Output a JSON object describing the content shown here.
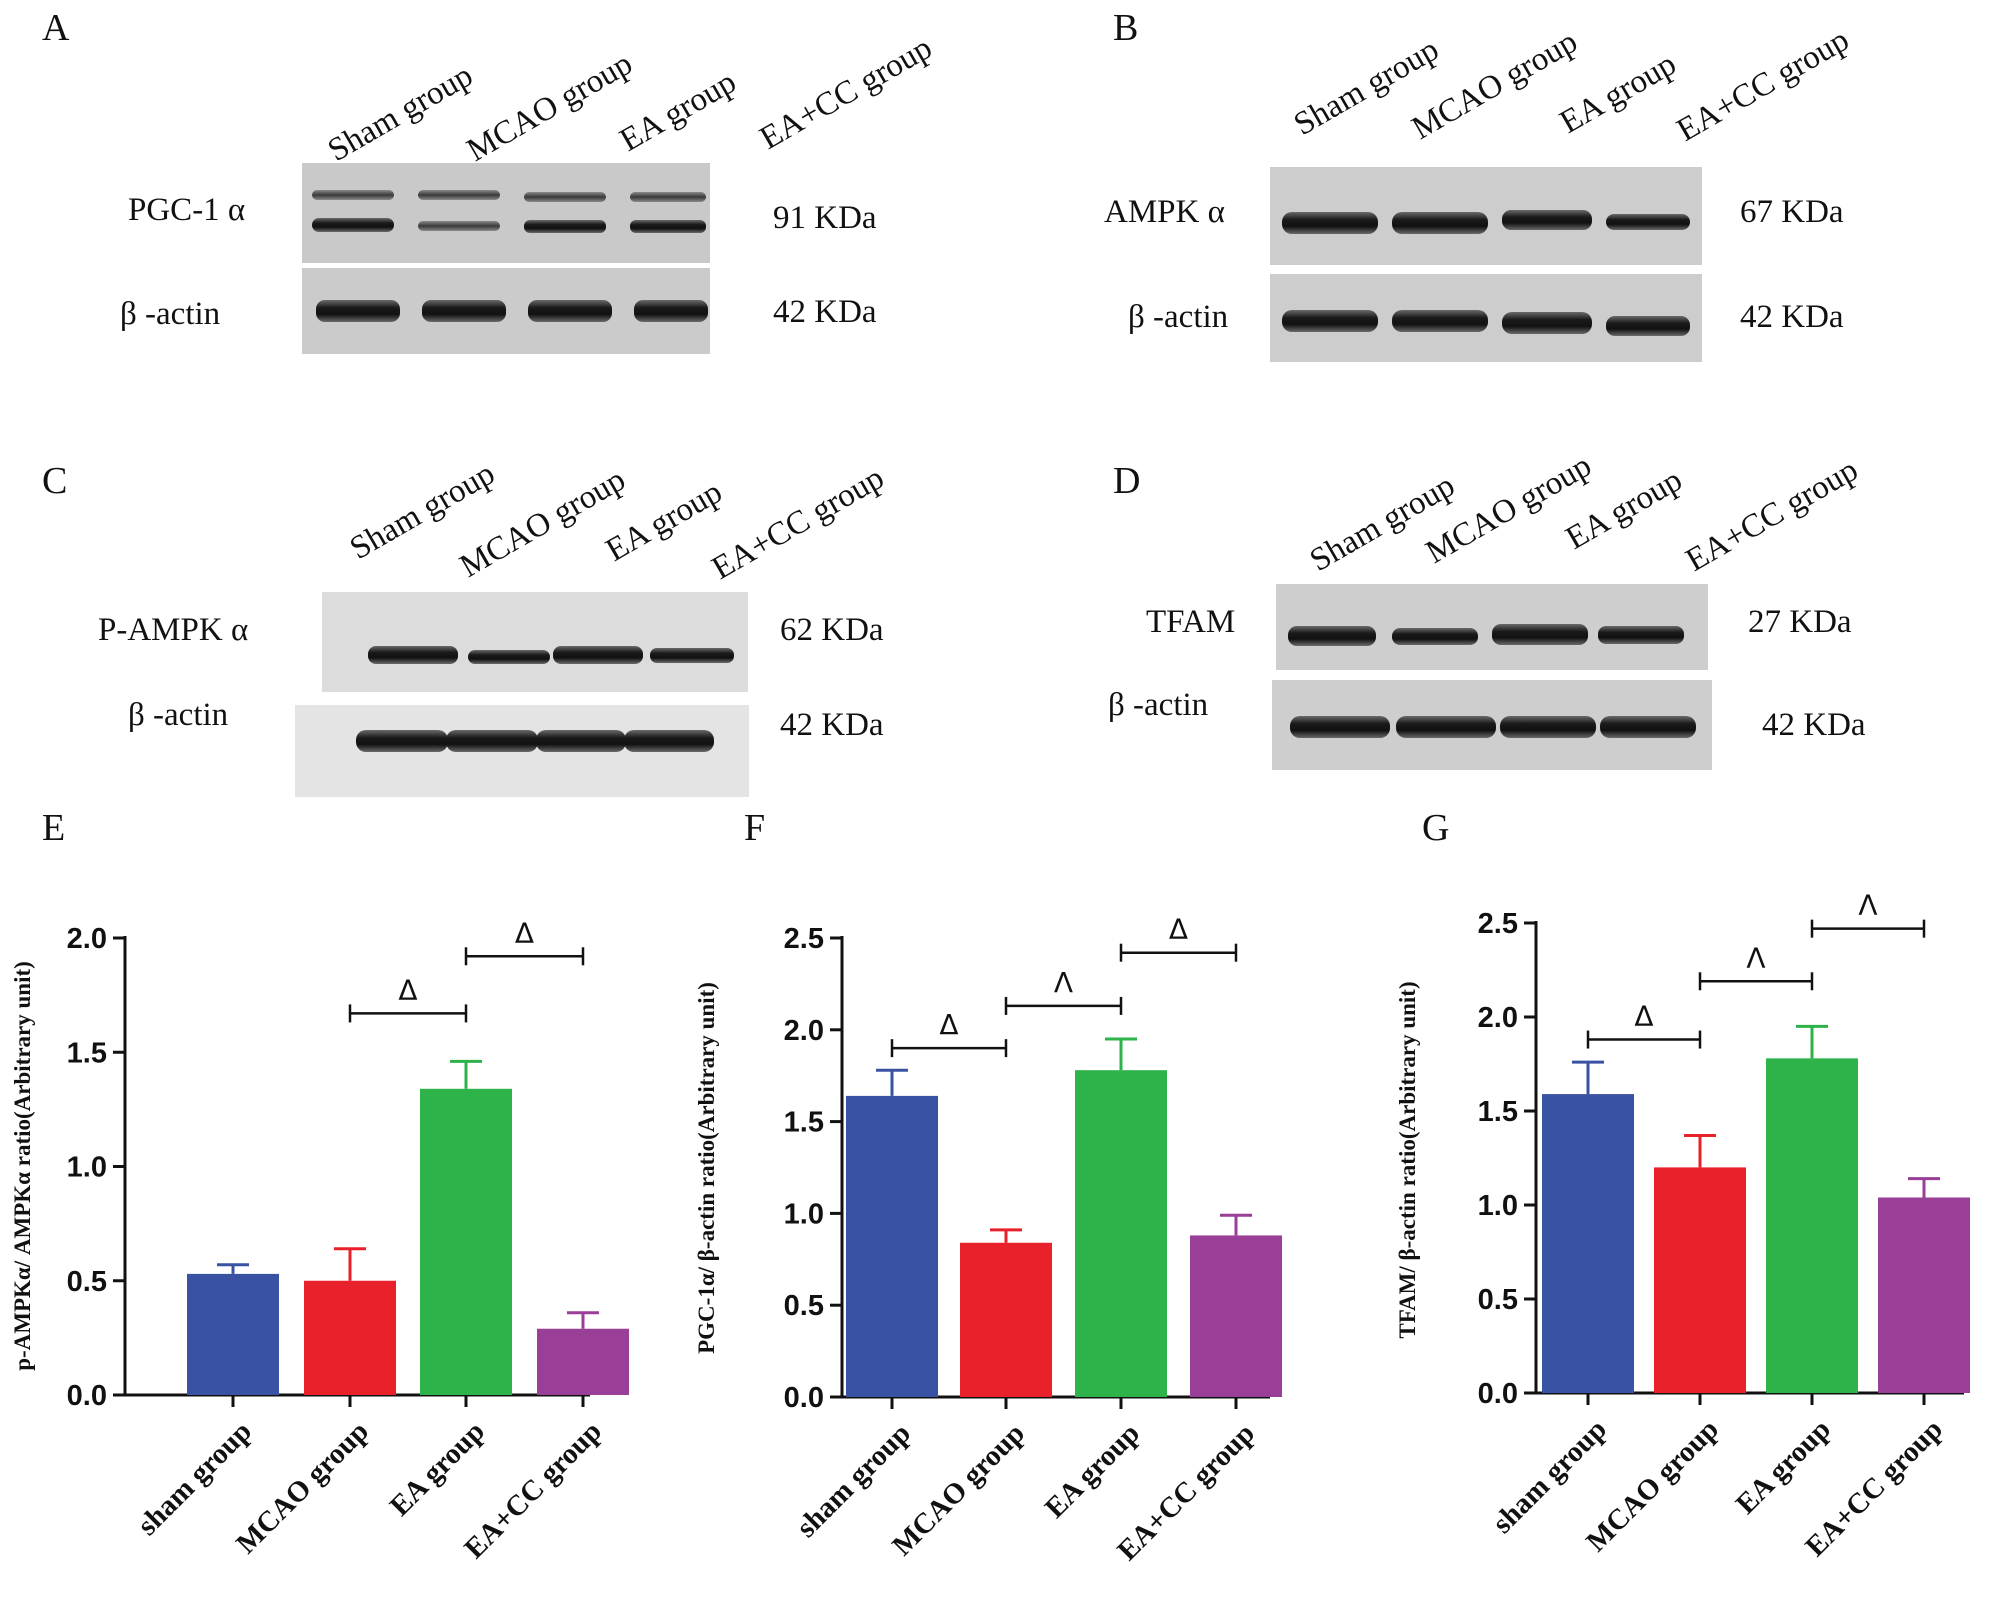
{
  "blots": [
    {
      "panel": "A",
      "groups": [
        "Sham group",
        "MCAO group",
        "EA group",
        "EA+CC group"
      ],
      "rows": [
        {
          "protein": "PGC-1 α",
          "kda": "91 KDa"
        },
        {
          "protein": "β -actin",
          "kda": "42 KDa"
        }
      ]
    },
    {
      "panel": "B",
      "groups": [
        "Sham group",
        "MCAO group",
        "EA group",
        "EA+CC group"
      ],
      "rows": [
        {
          "protein": "AMPK α",
          "kda": "67 KDa"
        },
        {
          "protein": "β -actin",
          "kda": "42 KDa"
        }
      ]
    },
    {
      "panel": "C",
      "groups": [
        "Sham group",
        "MCAO group",
        "EA group",
        "EA+CC group"
      ],
      "rows": [
        {
          "protein": "P-AMPK α",
          "kda": "62 KDa"
        },
        {
          "protein": "β -actin",
          "kda": "42 KDa"
        }
      ]
    },
    {
      "panel": "D",
      "groups": [
        "Sham group",
        "MCAO group",
        "EA group",
        "EA+CC group"
      ],
      "rows": [
        {
          "protein": "TFAM",
          "kda": "27 KDa"
        },
        {
          "protein": "β -actin",
          "kda": "42 KDa"
        }
      ]
    }
  ],
  "colors": {
    "sham": "#3a52a3",
    "mcao": "#e8212b",
    "ea": "#2db34a",
    "eacc": "#9a3f97"
  },
  "chart_data": [
    {
      "panel": "E",
      "type": "bar",
      "categories": [
        "sham group",
        "MCAO group",
        "EA group",
        "EA+CC group"
      ],
      "values": [
        0.53,
        0.5,
        1.34,
        0.29
      ],
      "errors": [
        0.04,
        0.14,
        0.12,
        0.07
      ],
      "ylabel": "p-AMPKα/ AMPKα ratio(Arbitrary unit)",
      "ylim": [
        0,
        2.0
      ],
      "yticks": [
        "0.0",
        "0.5",
        "1.0",
        "1.5",
        "2.0"
      ],
      "significance": [
        {
          "from": 1,
          "to": 2,
          "y": 1.67,
          "label": "Δ"
        },
        {
          "from": 2,
          "to": 3,
          "y": 1.92,
          "label": "Δ"
        }
      ]
    },
    {
      "panel": "F",
      "type": "bar",
      "categories": [
        "sham group",
        "MCAO group",
        "EA group",
        "EA+CC group"
      ],
      "values": [
        1.64,
        0.84,
        1.78,
        0.88
      ],
      "errors": [
        0.14,
        0.07,
        0.17,
        0.11
      ],
      "ylabel": "PGC-1α/ β-actin ratio(Arbitrary unit)",
      "ylim": [
        0,
        2.5
      ],
      "yticks": [
        "0.0",
        "0.5",
        "1.0",
        "1.5",
        "2.0",
        "2.5"
      ],
      "significance": [
        {
          "from": 0,
          "to": 1,
          "y": 1.9,
          "label": "Δ"
        },
        {
          "from": 1,
          "to": 2,
          "y": 2.13,
          "label": "Λ"
        },
        {
          "from": 2,
          "to": 3,
          "y": 2.42,
          "label": "Δ"
        }
      ]
    },
    {
      "panel": "G",
      "type": "bar",
      "categories": [
        "sham group",
        "MCAO group",
        "EA group",
        "EA+CC group"
      ],
      "values": [
        1.59,
        1.2,
        1.78,
        1.04
      ],
      "errors": [
        0.17,
        0.17,
        0.17,
        0.1
      ],
      "ylabel": "TFAM/ β-actin ratio(Arbitrary unit)",
      "ylim": [
        0,
        2.5
      ],
      "yticks": [
        "0.0",
        "0.5",
        "1.0",
        "1.5",
        "2.0",
        "2.5"
      ],
      "significance": [
        {
          "from": 0,
          "to": 1,
          "y": 1.88,
          "label": "Δ"
        },
        {
          "from": 1,
          "to": 2,
          "y": 2.19,
          "label": "Λ"
        },
        {
          "from": 2,
          "to": 3,
          "y": 2.47,
          "label": "Λ"
        }
      ]
    }
  ]
}
